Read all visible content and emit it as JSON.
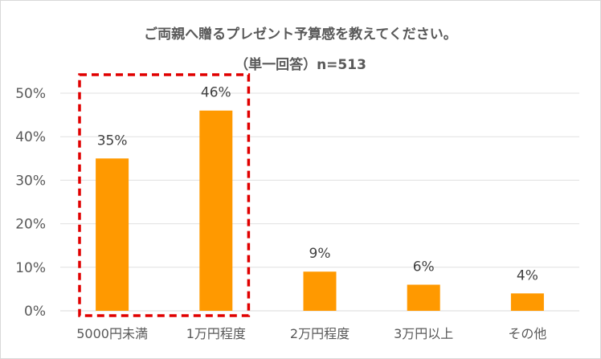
{
  "chart_data": {
    "type": "bar",
    "title_line1": "ご両親へ贈るプレゼント予算感を教えてください。",
    "title_line2": "（単一回答）n=513",
    "categories": [
      "5000円未満",
      "1万円程度",
      "2万円程度",
      "3万円以上",
      "その他"
    ],
    "values": [
      35,
      46,
      9,
      6,
      4
    ],
    "data_labels": [
      "35%",
      "46%",
      "9%",
      "6%",
      "4%"
    ],
    "y_ticks": [
      "0%",
      "10%",
      "20%",
      "30%",
      "40%",
      "50%"
    ],
    "ylim": [
      0,
      50
    ],
    "grid": true,
    "highlight": {
      "from": 0,
      "to": 1,
      "style": "dashed",
      "color": "#e00000"
    },
    "bar_color": "#ff9900"
  }
}
